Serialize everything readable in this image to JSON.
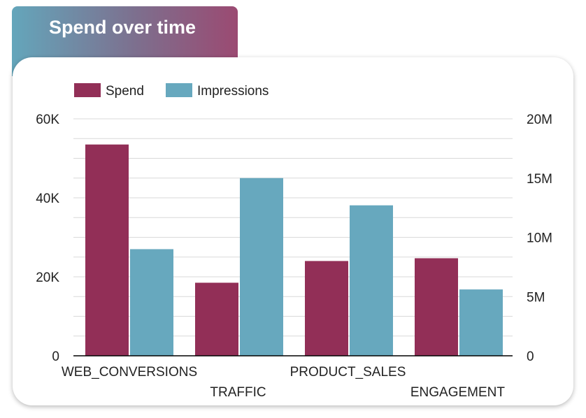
{
  "header": {
    "title": "Spend over time"
  },
  "colors": {
    "spend": "#922f57",
    "impressions": "#67a8be",
    "grid": "#d9d9d9",
    "axis": "#000000"
  },
  "chart_data": {
    "type": "bar",
    "title": "Spend over time",
    "categories": [
      "WEB_CONVERSIONS",
      "TRAFFIC",
      "PRODUCT_SALES",
      "ENGAGEMENT"
    ],
    "series": [
      {
        "name": "Spend",
        "axis": "left",
        "values": [
          53500,
          18500,
          24000,
          24700
        ]
      },
      {
        "name": "Impressions",
        "axis": "right",
        "values": [
          9000000,
          15000000,
          12700000,
          5600000
        ]
      }
    ],
    "y_left": {
      "ylim": [
        0,
        60000
      ],
      "ticks": [
        0,
        20000,
        40000,
        60000
      ],
      "tick_labels": [
        "0",
        "20K",
        "40K",
        "60K"
      ]
    },
    "y_right": {
      "ylim": [
        0,
        20000000
      ],
      "ticks": [
        0,
        5000000,
        10000000,
        15000000,
        20000000
      ],
      "tick_labels": [
        "0",
        "5M",
        "10M",
        "15M",
        "20M"
      ]
    },
    "legend": {
      "placement": "top-left",
      "entries": [
        "Spend",
        "Impressions"
      ]
    },
    "grid": true
  }
}
